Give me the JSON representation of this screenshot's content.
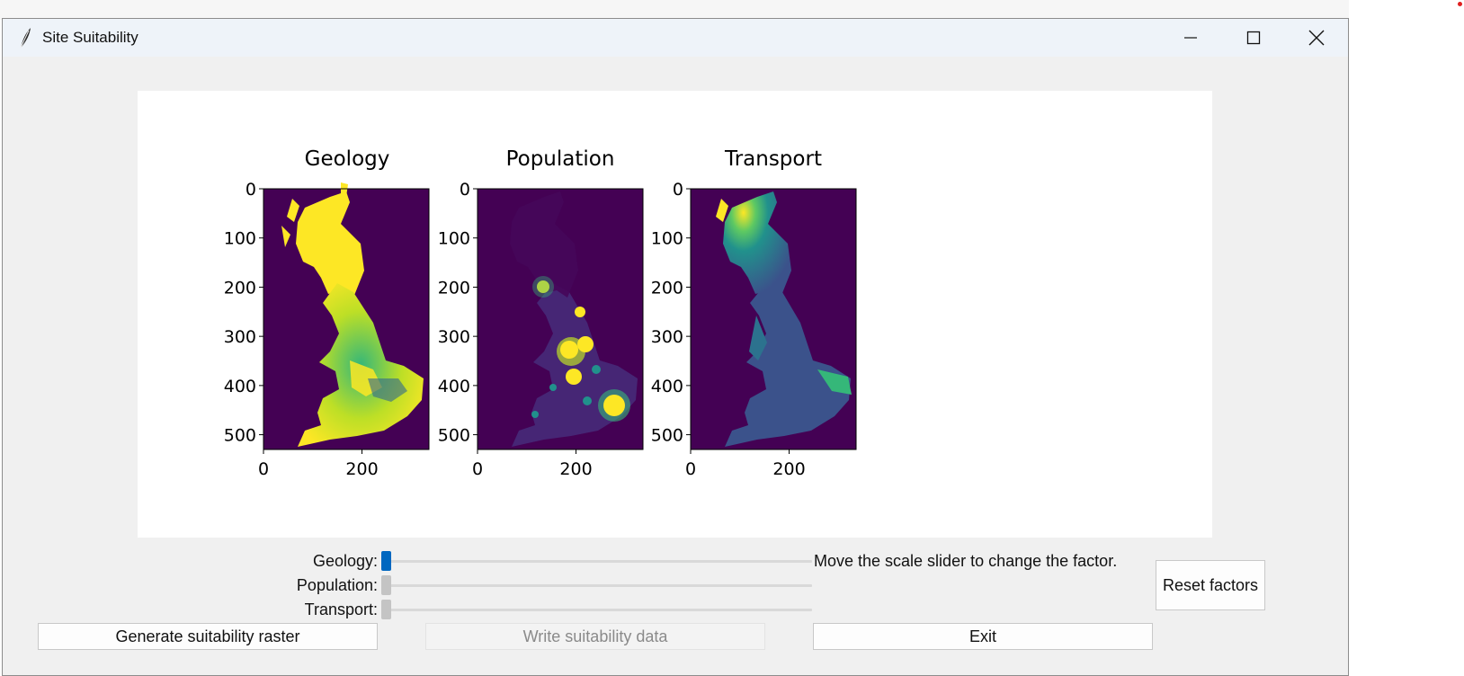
{
  "window": {
    "title": "Site Suitability"
  },
  "figures": [
    {
      "title": "Geology",
      "y_ticks": [
        "0",
        "100",
        "200",
        "300",
        "400",
        "500"
      ],
      "x_ticks": [
        "0",
        "200"
      ]
    },
    {
      "title": "Population",
      "y_ticks": [
        "0",
        "100",
        "200",
        "300",
        "400",
        "500"
      ],
      "x_ticks": [
        "0",
        "200"
      ]
    },
    {
      "title": "Transport",
      "y_ticks": [
        "0",
        "100",
        "200",
        "300",
        "400",
        "500"
      ],
      "x_ticks": [
        "0",
        "200"
      ]
    }
  ],
  "colors": {
    "viridis_low": "#440154",
    "viridis_mid": "#21918c",
    "viridis_high": "#fde725",
    "accent": "#0067c0",
    "thumb_inactive": "#c4c4c4"
  },
  "sliders": [
    {
      "label": "Geology:",
      "value": 0,
      "active": true
    },
    {
      "label": "Population:",
      "value": 0,
      "active": false
    },
    {
      "label": "Transport:",
      "value": 0,
      "active": false
    }
  ],
  "hint_text": "Move the scale slider to change the factor.",
  "buttons": {
    "reset": "Reset factors",
    "generate": "Generate suitability raster",
    "write": "Write suitability data",
    "exit": "Exit"
  }
}
